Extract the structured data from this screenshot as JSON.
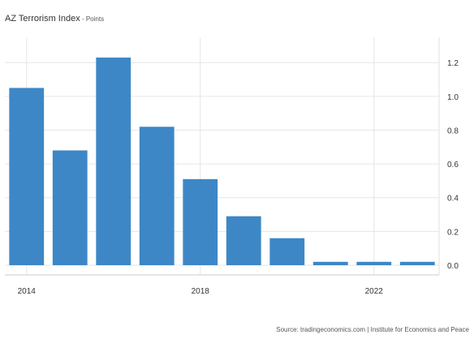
{
  "chart_data": {
    "type": "bar",
    "title": "AZ Terrorism Index",
    "subtitle": "Points",
    "x": [
      2014,
      2015,
      2016,
      2017,
      2018,
      2019,
      2020,
      2021,
      2022,
      2023
    ],
    "values": [
      1.05,
      0.68,
      1.23,
      0.82,
      0.51,
      0.29,
      0.16,
      0.02,
      0.02,
      0.02
    ],
    "xticks": [
      "2014",
      "2018",
      "2022"
    ],
    "yticks": [
      "0.0",
      "0.2",
      "0.4",
      "0.6",
      "0.8",
      "1.0",
      "1.2"
    ],
    "ylim": [
      0,
      1.35
    ],
    "grid": true,
    "yaxis_side": "right",
    "bar_color": "#3d87c6",
    "grid_color": "#e6e6e6"
  },
  "source": "Source: tradingeconomics.com | Institute for Economics and Peace"
}
